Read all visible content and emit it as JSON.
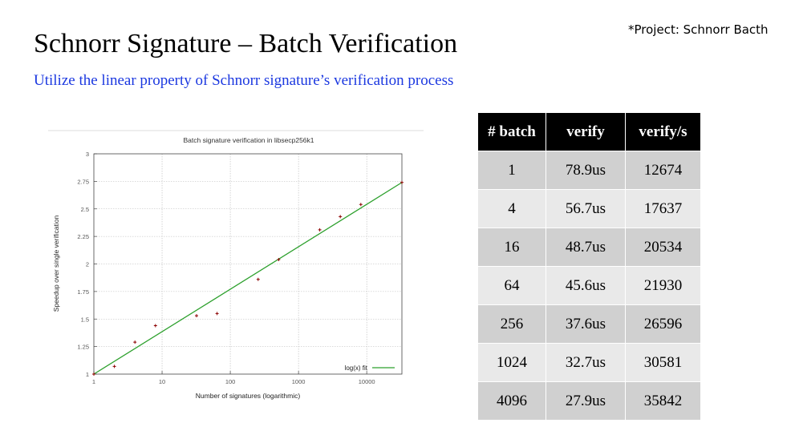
{
  "slide": {
    "title": "Schnorr Signature – Batch Verification",
    "subtitle": "Utilize the linear property of Schnorr signature’s verification process",
    "project_note": "*Project: Schnorr Bacth"
  },
  "chart_data": {
    "type": "scatter",
    "title": "Batch signature verification in libsecp256k1",
    "xlabel": "Number of signatures (logarithmic)",
    "ylabel": "Speedup over single verification",
    "x_scale": "log",
    "xlim": [
      1,
      32768
    ],
    "ylim": [
      1,
      3
    ],
    "x_ticks": [
      1,
      10,
      100,
      1000,
      10000
    ],
    "x_tick_labels": [
      "1",
      "10",
      "100",
      "1000",
      "10000"
    ],
    "y_ticks": [
      1,
      1.25,
      1.5,
      1.75,
      2,
      2.25,
      2.5,
      2.75,
      3
    ],
    "y_tick_labels": [
      "1",
      "1.25",
      "1.5",
      "1.75",
      "2",
      "2.25",
      "2.5",
      "2.75",
      "3"
    ],
    "grid": true,
    "legend_position": "bottom-right",
    "series": [
      {
        "kind": "points",
        "color": "#8b0000",
        "points": [
          {
            "x": 1,
            "y": 1.0
          },
          {
            "x": 2,
            "y": 1.07
          },
          {
            "x": 4,
            "y": 1.29
          },
          {
            "x": 8,
            "y": 1.44
          },
          {
            "x": 32,
            "y": 1.53
          },
          {
            "x": 64,
            "y": 1.55
          },
          {
            "x": 256,
            "y": 1.86
          },
          {
            "x": 512,
            "y": 2.04
          },
          {
            "x": 2048,
            "y": 2.31
          },
          {
            "x": 4096,
            "y": 2.43
          },
          {
            "x": 8192,
            "y": 2.54
          },
          {
            "x": 32768,
            "y": 2.74
          }
        ]
      },
      {
        "name": "log(x) fit",
        "kind": "line",
        "color": "#2ca02c",
        "points": [
          {
            "x": 1,
            "y": 1.0
          },
          {
            "x": 32768,
            "y": 2.74
          }
        ]
      }
    ]
  },
  "table": {
    "headers": [
      "# batch",
      "verify",
      "verify/s"
    ],
    "rows": [
      [
        "1",
        "78.9us",
        "12674"
      ],
      [
        "4",
        "56.7us",
        "17637"
      ],
      [
        "16",
        "48.7us",
        "20534"
      ],
      [
        "64",
        "45.6us",
        "21930"
      ],
      [
        "256",
        "37.6us",
        "26596"
      ],
      [
        "1024",
        "32.7us",
        "30581"
      ],
      [
        "4096",
        "27.9us",
        "35842"
      ]
    ]
  }
}
